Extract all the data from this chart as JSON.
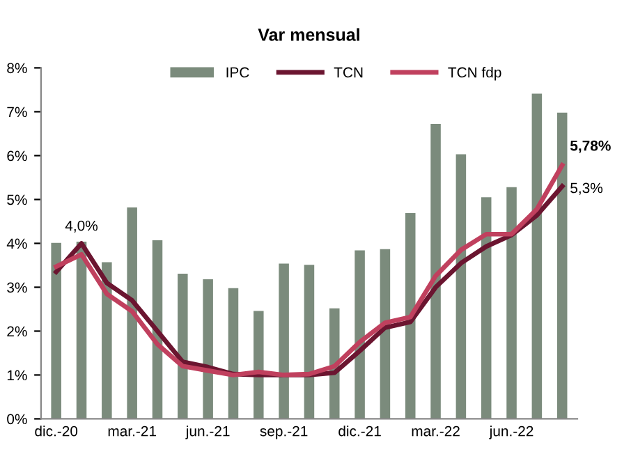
{
  "chart_data": {
    "type": "bar",
    "title": "Var mensual",
    "categories": [
      "dic.-20",
      null,
      null,
      "mar.-21",
      null,
      null,
      "jun.-21",
      null,
      null,
      "sep.-21",
      null,
      null,
      "dic.-21",
      null,
      null,
      "mar.-22",
      null,
      null,
      "jun.-22",
      null,
      null
    ],
    "series": [
      {
        "name": "IPC",
        "color": "#7b8b7c",
        "values": [
          4.01,
          4.04,
          3.57,
          4.82,
          4.07,
          3.31,
          3.18,
          2.98,
          2.46,
          3.54,
          3.51,
          2.52,
          3.84,
          3.87,
          4.69,
          6.72,
          6.03,
          5.05,
          5.28,
          7.41,
          6.98
        ]
      },
      {
        "name": "TCN",
        "type": "line",
        "color": "#6b1530",
        "values": [
          3.35,
          4.0,
          3.1,
          2.7,
          2.0,
          1.3,
          1.18,
          1.02,
          1.0,
          1.0,
          1.0,
          1.05,
          1.55,
          2.08,
          2.21,
          3.0,
          3.55,
          3.93,
          4.19,
          4.64,
          5.3
        ],
        "value_labels": [
          null,
          "4,0%",
          null,
          null,
          null,
          null,
          null,
          null,
          null,
          null,
          null,
          null,
          null,
          null,
          null,
          null,
          null,
          null,
          null,
          null,
          "5,3%"
        ]
      },
      {
        "name": "TCN fdp",
        "type": "line",
        "color": "#c0405e",
        "values": [
          3.47,
          3.75,
          2.85,
          2.45,
          1.7,
          1.2,
          1.1,
          1.0,
          1.07,
          1.0,
          1.02,
          1.2,
          1.75,
          2.19,
          2.32,
          3.26,
          3.85,
          4.21,
          4.21,
          4.78,
          5.78
        ],
        "value_labels": [
          null,
          null,
          null,
          null,
          null,
          null,
          null,
          null,
          null,
          null,
          null,
          null,
          null,
          null,
          null,
          null,
          null,
          null,
          null,
          null,
          "5,78%"
        ]
      }
    ],
    "ylim": [
      0,
      8
    ],
    "yticks": [
      {
        "value": 0,
        "label": "0%"
      },
      {
        "value": 1,
        "label": "1%"
      },
      {
        "value": 2,
        "label": "2%"
      },
      {
        "value": 3,
        "label": "3%"
      },
      {
        "value": 4,
        "label": "4%"
      },
      {
        "value": 5,
        "label": "5%"
      },
      {
        "value": 6,
        "label": "6%"
      },
      {
        "value": 7,
        "label": "7%"
      },
      {
        "value": 8,
        "label": "8%"
      }
    ],
    "legend": "top",
    "line_style": "solid"
  }
}
